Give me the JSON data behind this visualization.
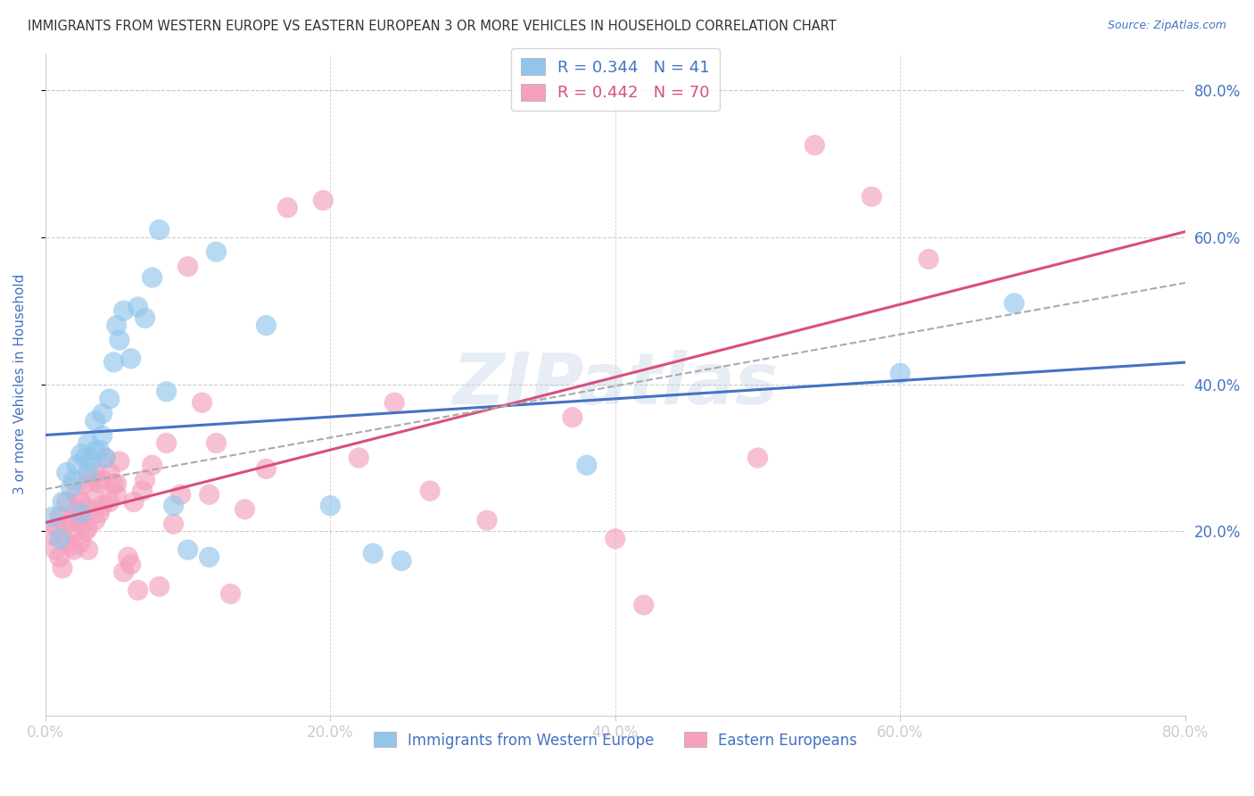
{
  "title": "IMMIGRANTS FROM WESTERN EUROPE VS EASTERN EUROPEAN 3 OR MORE VEHICLES IN HOUSEHOLD CORRELATION CHART",
  "source": "Source: ZipAtlas.com",
  "ylabel": "3 or more Vehicles in Household",
  "xlim": [
    0,
    0.8
  ],
  "ylim": [
    -0.05,
    0.85
  ],
  "plot_ylim": [
    -0.05,
    0.85
  ],
  "xtick_labels": [
    "0.0%",
    "20.0%",
    "40.0%",
    "60.0%",
    "80.0%"
  ],
  "xtick_vals": [
    0.0,
    0.2,
    0.4,
    0.6,
    0.8
  ],
  "ytick_labels": [
    "20.0%",
    "40.0%",
    "60.0%",
    "80.0%"
  ],
  "ytick_vals": [
    0.2,
    0.4,
    0.6,
    0.8
  ],
  "legend_label1": "Immigrants from Western Europe",
  "legend_label2": "Eastern Europeans",
  "R1": 0.344,
  "N1": 41,
  "R2": 0.442,
  "N2": 70,
  "color1": "#92C5EC",
  "color2": "#F4A0BE",
  "trendline1_color": "#4472C4",
  "trendline2_color": "#D94F7C",
  "trendline_dash_color": "#AAAAAA",
  "background_color": "#FFFFFF",
  "grid_color": "#CCCCCC",
  "title_color": "#333333",
  "tick_label_color": "#4472C4",
  "watermark_text": "ZIPatlas",
  "blue_x": [
    0.005,
    0.01,
    0.012,
    0.015,
    0.018,
    0.02,
    0.022,
    0.025,
    0.025,
    0.028,
    0.03,
    0.03,
    0.032,
    0.035,
    0.035,
    0.038,
    0.04,
    0.04,
    0.042,
    0.045,
    0.048,
    0.05,
    0.052,
    0.055,
    0.06,
    0.065,
    0.07,
    0.075,
    0.08,
    0.085,
    0.09,
    0.1,
    0.115,
    0.12,
    0.155,
    0.2,
    0.23,
    0.25,
    0.38,
    0.6,
    0.68
  ],
  "blue_y": [
    0.22,
    0.19,
    0.24,
    0.28,
    0.26,
    0.27,
    0.29,
    0.225,
    0.305,
    0.3,
    0.28,
    0.32,
    0.295,
    0.31,
    0.35,
    0.31,
    0.33,
    0.36,
    0.3,
    0.38,
    0.43,
    0.48,
    0.46,
    0.5,
    0.435,
    0.505,
    0.49,
    0.545,
    0.61,
    0.39,
    0.235,
    0.175,
    0.165,
    0.58,
    0.48,
    0.235,
    0.17,
    0.16,
    0.29,
    0.415,
    0.51
  ],
  "pink_x": [
    0.005,
    0.007,
    0.008,
    0.01,
    0.01,
    0.012,
    0.015,
    0.015,
    0.015,
    0.018,
    0.018,
    0.02,
    0.02,
    0.022,
    0.022,
    0.025,
    0.025,
    0.025,
    0.028,
    0.028,
    0.03,
    0.03,
    0.03,
    0.032,
    0.035,
    0.035,
    0.035,
    0.038,
    0.038,
    0.04,
    0.04,
    0.042,
    0.045,
    0.045,
    0.048,
    0.05,
    0.05,
    0.052,
    0.055,
    0.058,
    0.06,
    0.062,
    0.065,
    0.068,
    0.07,
    0.075,
    0.08,
    0.085,
    0.09,
    0.095,
    0.1,
    0.11,
    0.115,
    0.12,
    0.13,
    0.14,
    0.155,
    0.17,
    0.195,
    0.22,
    0.245,
    0.27,
    0.31,
    0.37,
    0.4,
    0.42,
    0.5,
    0.54,
    0.58,
    0.62
  ],
  "pink_y": [
    0.195,
    0.175,
    0.205,
    0.165,
    0.22,
    0.15,
    0.185,
    0.21,
    0.24,
    0.18,
    0.215,
    0.175,
    0.2,
    0.225,
    0.25,
    0.185,
    0.21,
    0.24,
    0.2,
    0.265,
    0.175,
    0.205,
    0.23,
    0.27,
    0.215,
    0.245,
    0.28,
    0.225,
    0.265,
    0.235,
    0.27,
    0.3,
    0.24,
    0.28,
    0.265,
    0.265,
    0.25,
    0.295,
    0.145,
    0.165,
    0.155,
    0.24,
    0.12,
    0.255,
    0.27,
    0.29,
    0.125,
    0.32,
    0.21,
    0.25,
    0.56,
    0.375,
    0.25,
    0.32,
    0.115,
    0.23,
    0.285,
    0.64,
    0.65,
    0.3,
    0.375,
    0.255,
    0.215,
    0.355,
    0.19,
    0.1,
    0.3,
    0.725,
    0.655,
    0.57
  ]
}
